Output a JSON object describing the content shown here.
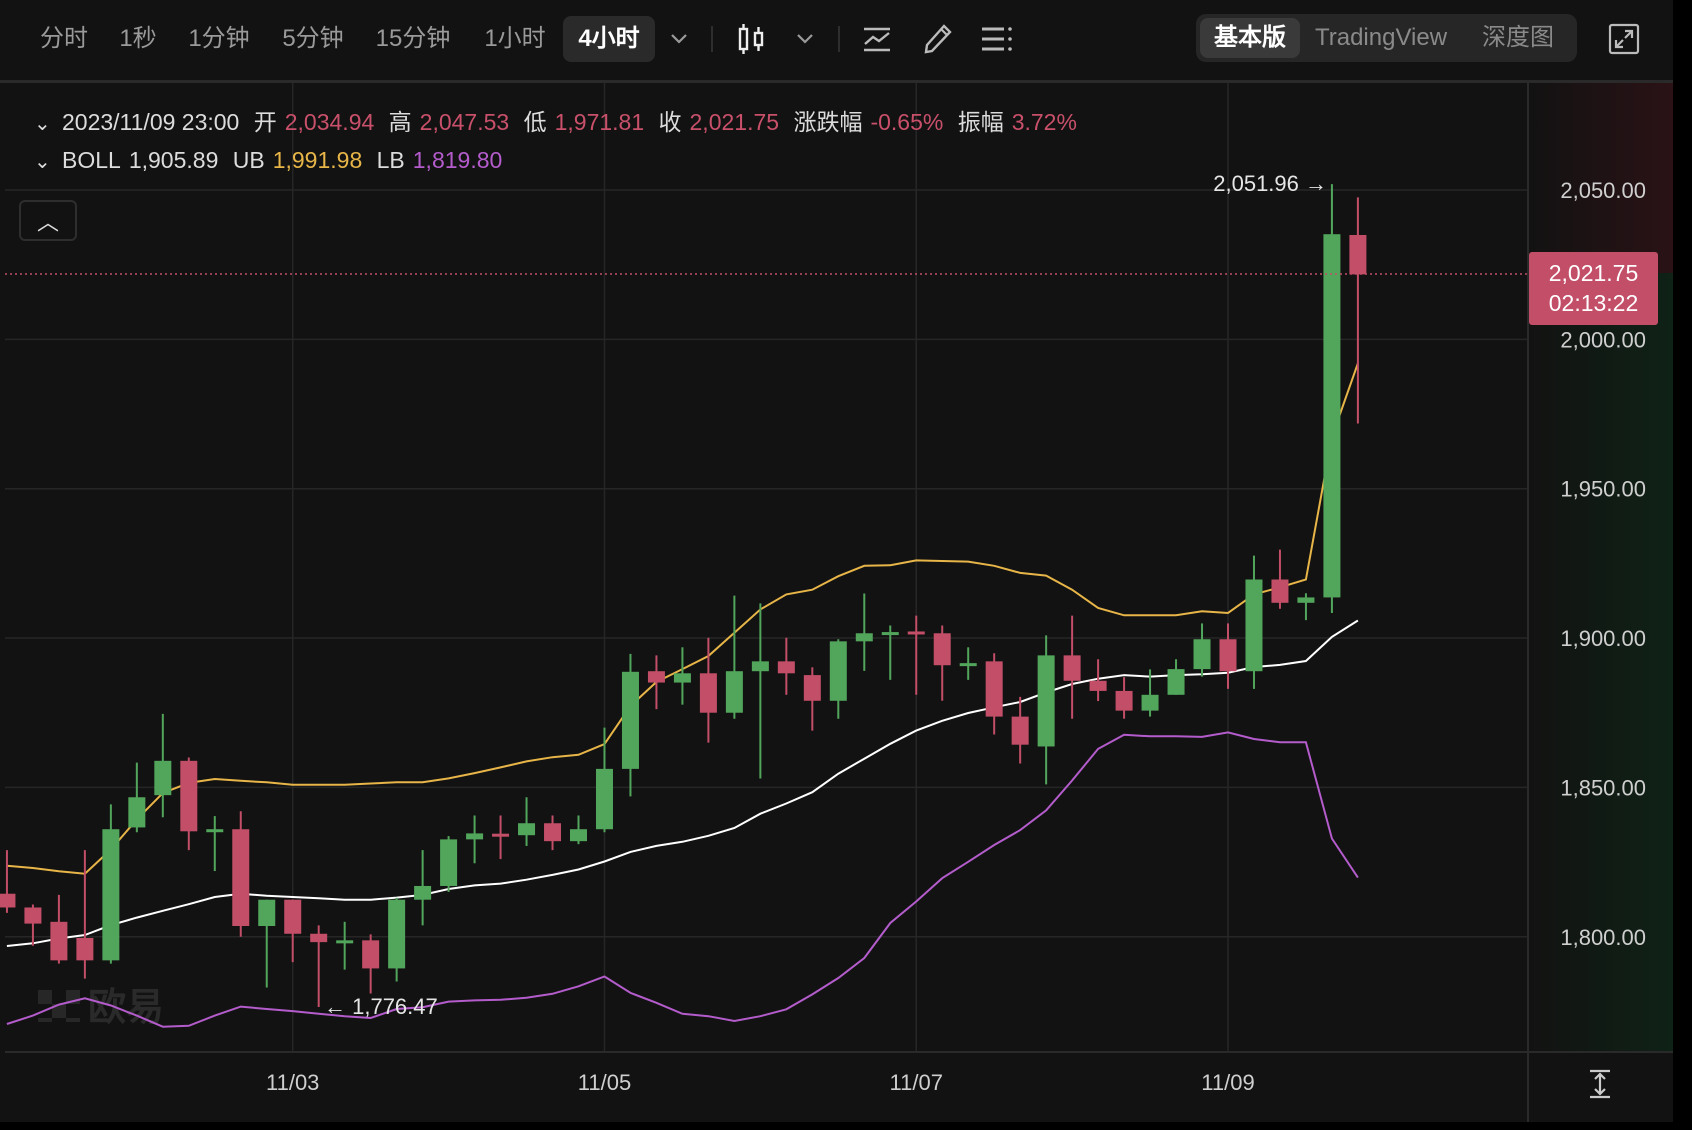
{
  "toolbar": {
    "intervals": [
      {
        "label": "分时",
        "active": false
      },
      {
        "label": "1秒",
        "active": false
      },
      {
        "label": "1分钟",
        "active": false
      },
      {
        "label": "5分钟",
        "active": false
      },
      {
        "label": "15分钟",
        "active": false
      },
      {
        "label": "1小时",
        "active": false
      },
      {
        "label": "4小时",
        "active": true
      }
    ],
    "icons": [
      "chevron-down-icon",
      "candlestick-type-icon",
      "chevron-down-icon",
      "indicator-icon",
      "pencil-icon",
      "settings-list-icon"
    ],
    "views": [
      {
        "label": "基本版",
        "active": true
      },
      {
        "label": "TradingView",
        "active": false
      },
      {
        "label": "深度图",
        "active": false
      }
    ],
    "expand_icon": "fullscreen-icon"
  },
  "ohlc_header": {
    "time": "2023/11/09 23:00",
    "open_label": "开",
    "open": "2,034.94",
    "high_label": "高",
    "high": "2,047.53",
    "low_label": "低",
    "low": "1,971.81",
    "close_label": "收",
    "close": "2,021.75",
    "change_label": "涨跌幅",
    "change": "-0.65%",
    "amplitude_label": "振幅",
    "amplitude": "3.72%"
  },
  "boll_header": {
    "label": "BOLL",
    "mid": "1,905.89",
    "ub_label": "UB",
    "ub": "1,991.98",
    "lb_label": "LB",
    "lb": "1,819.80"
  },
  "current_price": {
    "price": "2,021.75",
    "countdown": "02:13:22"
  },
  "annotations": {
    "high": "2,051.96 →",
    "low": "← 1,776.47"
  },
  "watermark": "欧易",
  "colors": {
    "up": "#52a65c",
    "down": "#c24e68",
    "ub": "#e7b548",
    "mb": "#ffffff",
    "lb": "#b45ccc",
    "background": "#121212"
  },
  "chart_data": {
    "type": "candlestick",
    "interval": "4小时",
    "x_tick_labels": [
      "11/03",
      "11/05",
      "11/07",
      "11/09"
    ],
    "y_tick_labels": [
      "2,050.00",
      "2,000.00",
      "1,950.00",
      "1,900.00",
      "1,850.00",
      "1,800.00"
    ],
    "y_range": [
      1760,
      2095
    ],
    "grid": true,
    "candles_ohlc": [
      [
        1814.4,
        1829,
        1808,
        1809.8
      ],
      [
        1809.8,
        1810.8,
        1797,
        1804.4
      ],
      [
        1805,
        1814,
        1791,
        1792.1
      ],
      [
        1799.6,
        1829,
        1786,
        1792.1
      ],
      [
        1792.1,
        1844.3,
        1791,
        1836
      ],
      [
        1836.6,
        1858.3,
        1835,
        1846.7
      ],
      [
        1847.4,
        1874.6,
        1840,
        1858.9
      ],
      [
        1858.9,
        1860,
        1829,
        1835.3
      ],
      [
        1835.3,
        1840.4,
        1822,
        1836
      ],
      [
        1836,
        1842,
        1800,
        1803.6
      ],
      [
        1803.6,
        1812.4,
        1783,
        1812.4
      ],
      [
        1812.4,
        1812.4,
        1791.5,
        1801
      ],
      [
        1801,
        1803.8,
        1776.47,
        1798.2
      ],
      [
        1798.5,
        1805,
        1789,
        1798.8
      ],
      [
        1798.8,
        1800.8,
        1781,
        1789.4
      ],
      [
        1789.4,
        1813,
        1785,
        1812.4
      ],
      [
        1812.4,
        1829,
        1803.8,
        1817
      ],
      [
        1817,
        1833.7,
        1815,
        1832.6
      ],
      [
        1832.6,
        1840.6,
        1824.6,
        1834.6
      ],
      [
        1834.5,
        1840.6,
        1826,
        1834.2
      ],
      [
        1834,
        1846.7,
        1830.4,
        1838
      ],
      [
        1838,
        1840.6,
        1829,
        1832
      ],
      [
        1832,
        1840.6,
        1831,
        1836
      ],
      [
        1836,
        1870,
        1835,
        1856.2
      ],
      [
        1856.2,
        1894.7,
        1847,
        1888.7
      ],
      [
        1888.9,
        1894.2,
        1876.2,
        1885.1
      ],
      [
        1885.1,
        1896.9,
        1877.7,
        1888.2
      ],
      [
        1888.2,
        1900.1,
        1865,
        1875
      ],
      [
        1875,
        1914.2,
        1873,
        1888.9
      ],
      [
        1888.9,
        1911.6,
        1853,
        1892.2
      ],
      [
        1892.2,
        1900.1,
        1881,
        1888.2
      ],
      [
        1887.6,
        1890.2,
        1869,
        1879
      ],
      [
        1879,
        1899.6,
        1873,
        1898.9
      ],
      [
        1898.9,
        1914.9,
        1889,
        1901.6
      ],
      [
        1901.6,
        1904.2,
        1886,
        1902
      ],
      [
        1902.2,
        1907.5,
        1881,
        1901.8
      ],
      [
        1901.6,
        1904.2,
        1879,
        1890.9
      ],
      [
        1891,
        1896.9,
        1886,
        1891.6
      ],
      [
        1892.2,
        1894.9,
        1867.7,
        1873.7
      ],
      [
        1873.7,
        1880.3,
        1858,
        1864.3
      ],
      [
        1863.7,
        1900.9,
        1851,
        1894.2
      ],
      [
        1894.2,
        1907.5,
        1873,
        1885.7
      ],
      [
        1885.7,
        1892.9,
        1878.9,
        1882.3
      ],
      [
        1882.3,
        1886.9,
        1873,
        1875.7
      ],
      [
        1875.7,
        1889.5,
        1873.7,
        1881
      ],
      [
        1881,
        1892.9,
        1881,
        1889.6
      ],
      [
        1889.6,
        1904.9,
        1887.1,
        1899.6
      ],
      [
        1899.6,
        1904.9,
        1883,
        1888.9
      ],
      [
        1888.9,
        1927.6,
        1883,
        1919.6
      ],
      [
        1919.6,
        1929.6,
        1909.8,
        1911.8
      ],
      [
        1911.8,
        1915,
        1906,
        1913.6
      ],
      [
        1913.6,
        2051.96,
        1908.4,
        2035.2
      ],
      [
        2034.94,
        2047.53,
        1971.81,
        2021.75
      ]
    ],
    "boll_ub": [
      1823.8,
      1823,
      1821.9,
      1821.1,
      1829.2,
      1839.3,
      1848.1,
      1851.5,
      1852.8,
      1852.2,
      1851.7,
      1850.9,
      1850.9,
      1850.9,
      1851.3,
      1851.7,
      1851.7,
      1853,
      1854.8,
      1856.7,
      1858.7,
      1860.1,
      1860.9,
      1864.5,
      1877.3,
      1885.3,
      1889.6,
      1894,
      1901.8,
      1909.6,
      1914.6,
      1916.2,
      1920.7,
      1924.2,
      1924.4,
      1926,
      1925.8,
      1925.6,
      1924.2,
      1921.8,
      1920.9,
      1916.2,
      1910.1,
      1907.6,
      1907.6,
      1907.6,
      1909,
      1908.4,
      1914.6,
      1917,
      1919.6,
      1967.3,
      1991.98
    ],
    "boll_mb": [
      1796.9,
      1797.8,
      1799.4,
      1800.6,
      1803.9,
      1806.4,
      1808.7,
      1810.9,
      1813.3,
      1814.4,
      1813.7,
      1813.3,
      1812.9,
      1812.4,
      1812.4,
      1813.1,
      1814,
      1816,
      1817.2,
      1817.8,
      1819.1,
      1820.7,
      1822.5,
      1825.2,
      1828.4,
      1830.4,
      1831.8,
      1833.8,
      1836.4,
      1841.2,
      1844.6,
      1848.4,
      1854.6,
      1859.6,
      1864.6,
      1869,
      1872.3,
      1874.9,
      1876.8,
      1878.6,
      1881.8,
      1884.6,
      1886.4,
      1887.6,
      1887.1,
      1887.6,
      1887.9,
      1888.4,
      1890.3,
      1891,
      1892.3,
      1900.4,
      1905.89
    ],
    "boll_lb": [
      1770.8,
      1773.6,
      1777.3,
      1779.4,
      1777,
      1773.6,
      1769.9,
      1770.2,
      1773.6,
      1776.6,
      1775.8,
      1775.1,
      1774.2,
      1773.4,
      1772.8,
      1775.8,
      1776.4,
      1778.3,
      1778.7,
      1778.9,
      1779.6,
      1780.9,
      1783.4,
      1786.7,
      1781.2,
      1777.9,
      1774.2,
      1773.4,
      1771.8,
      1773.4,
      1775.7,
      1780.7,
      1786.2,
      1792.9,
      1804.6,
      1811.8,
      1819.6,
      1825.1,
      1830.7,
      1835.7,
      1842.3,
      1852.3,
      1862.9,
      1867.6,
      1867.1,
      1867.1,
      1866.9,
      1868.4,
      1866.2,
      1865.1,
      1865.1,
      1832.9,
      1819.8
    ]
  }
}
